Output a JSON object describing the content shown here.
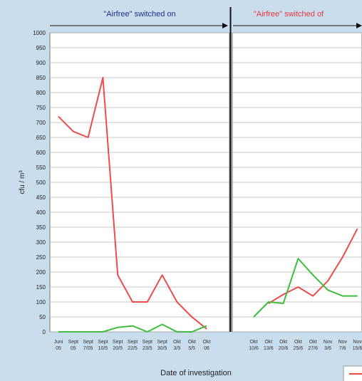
{
  "chart_data": {
    "type": "line",
    "ylabel": "cfu / m³",
    "xlabel": "Date of investigation",
    "ylim": [
      0,
      1000
    ],
    "yticks": [
      0,
      50,
      100,
      150,
      200,
      250,
      300,
      350,
      400,
      450,
      500,
      550,
      600,
      650,
      700,
      750,
      800,
      850,
      900,
      950,
      1000
    ],
    "grid": true,
    "phases": [
      {
        "label": "\"Airfree\" switched on",
        "color": "#1a2f8a"
      },
      {
        "label": "\"Airfree\" switched of",
        "color": "#e8383d"
      }
    ],
    "panels": [
      {
        "phase": 0,
        "categories": [
          "Juni 05",
          "Sept 05",
          "Sept 7/05",
          "Sept 10/5",
          "Sept 20/5",
          "Sept 22/5",
          "Sept 23/5",
          "Sept 30/5",
          "Okt 3/5",
          "Okt 5/5",
          "Okt 06"
        ],
        "series": [
          {
            "color": "#ef4b4b",
            "values": [
              720,
              670,
              650,
              850,
              190,
              100,
              100,
              190,
              100,
              50,
              10
            ]
          },
          {
            "color": "#3fbd3f",
            "values": [
              0,
              0,
              0,
              0,
              15,
              20,
              0,
              25,
              0,
              0,
              20
            ]
          }
        ]
      },
      {
        "phase": 1,
        "categories": [
          "Okt 10/6",
          "Okt 13/6",
          "Okt 20/6",
          "Okt 25/6",
          "Okt 27/6",
          "Nov 3/6",
          "Nov 7/6",
          "Nov 15/6"
        ],
        "series": [
          {
            "color": "#ef4b4b",
            "values": [
              null,
              95,
              125,
              150,
              120,
              170,
              250,
              345
            ]
          },
          {
            "color": "#3fbd3f",
            "values": [
              50,
              100,
              95,
              245,
              190,
              140,
              120,
              120
            ]
          }
        ]
      }
    ]
  }
}
